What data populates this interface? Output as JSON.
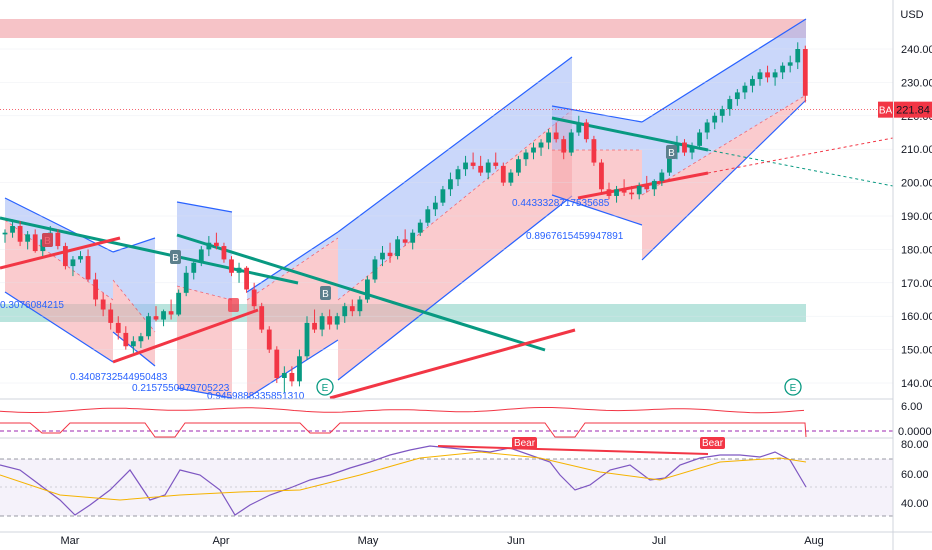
{
  "chart_data": {
    "type": "candlestick",
    "symbol": "BA",
    "currency": "USD",
    "last_price": "221.84",
    "x_tick_labels": [
      "Mar",
      "Apr",
      "May",
      "Jun",
      "Jul",
      "Aug"
    ],
    "y_tick_labels": [
      "140.00",
      "150.00",
      "160.00",
      "170.00",
      "180.00",
      "190.00",
      "200.00",
      "210.00",
      "220.00",
      "230.00",
      "240.00"
    ],
    "ylim": [
      136,
      252
    ],
    "pane2": {
      "tick_labels": [
        "6.00",
        "0.0000"
      ]
    },
    "pane3": {
      "tick_labels": [
        "80.00",
        "60.00",
        "40.00"
      ],
      "ylim": [
        22,
        84
      ]
    },
    "fib_labels": [
      "0.3076084215",
      "0.3408732544950483",
      "0.2157550979705223",
      "0.9459888335851310",
      "0.4433328717535685",
      "0.8967615459947891"
    ],
    "signal_labels": {
      "buy": "B",
      "bear": "Bear",
      "earnings": "E"
    },
    "candles": [
      [
        184.5,
        186,
        182,
        185
      ],
      [
        185,
        189,
        183.5,
        187
      ],
      [
        187,
        188.5,
        181,
        182.3
      ],
      [
        182.3,
        185.5,
        180,
        184.5
      ],
      [
        184.5,
        186,
        179,
        179.5
      ],
      [
        179.5,
        184,
        178,
        183
      ],
      [
        183,
        187,
        181.5,
        185
      ],
      [
        185,
        186,
        180,
        181
      ],
      [
        181,
        182,
        174,
        175
      ],
      [
        175,
        178,
        172,
        177
      ],
      [
        177,
        179.5,
        176,
        178
      ],
      [
        178,
        180,
        170.5,
        171
      ],
      [
        171,
        173,
        163,
        165
      ],
      [
        165,
        167,
        160,
        162
      ],
      [
        162,
        164,
        156,
        158
      ],
      [
        158,
        160,
        153,
        155
      ],
      [
        155,
        157,
        150,
        151
      ],
      [
        151,
        154,
        149,
        152.5
      ],
      [
        152.5,
        155,
        150.5,
        154
      ],
      [
        154,
        161,
        153,
        160
      ],
      [
        160,
        163,
        158.5,
        159
      ],
      [
        159,
        162,
        157,
        161.5
      ],
      [
        161.5,
        165,
        159,
        160.5
      ],
      [
        160.5,
        168,
        160,
        167
      ],
      [
        167,
        175,
        166,
        173
      ],
      [
        173,
        177,
        171,
        176
      ],
      [
        176,
        181,
        175,
        180
      ],
      [
        180,
        184,
        178,
        182
      ],
      [
        182,
        185,
        180,
        181
      ],
      [
        181,
        182,
        176,
        177
      ],
      [
        177,
        178,
        172,
        173
      ],
      [
        173,
        176,
        170,
        174.5
      ],
      [
        174.5,
        175,
        167,
        168
      ],
      [
        168,
        170,
        162,
        163
      ],
      [
        163,
        164,
        155,
        156
      ],
      [
        156,
        157,
        149,
        150
      ],
      [
        150,
        151,
        140,
        141.5
      ],
      [
        141.5,
        145,
        137,
        143
      ],
      [
        143,
        145,
        139,
        140.5
      ],
      [
        140.5,
        150,
        139,
        148
      ],
      [
        148,
        160,
        147,
        158
      ],
      [
        158,
        162,
        155,
        156
      ],
      [
        156,
        161,
        154,
        160
      ],
      [
        160,
        162,
        156,
        157.5
      ],
      [
        157.5,
        161,
        156,
        160
      ],
      [
        160,
        164,
        158,
        163
      ],
      [
        163,
        165,
        160,
        161.5
      ],
      [
        161.5,
        166,
        160,
        165
      ],
      [
        165,
        172,
        164,
        171
      ],
      [
        171,
        178,
        170,
        177
      ],
      [
        177,
        181,
        175,
        179
      ],
      [
        179,
        182,
        176,
        178
      ],
      [
        178,
        184,
        177,
        183
      ],
      [
        183,
        186,
        181,
        182
      ],
      [
        182,
        186,
        180,
        185
      ],
      [
        185,
        189,
        184,
        188
      ],
      [
        188,
        193,
        187,
        192
      ],
      [
        192,
        196,
        190,
        194
      ],
      [
        194,
        199,
        193,
        198
      ],
      [
        198,
        203,
        196,
        201
      ],
      [
        201,
        205,
        199,
        204
      ],
      [
        204,
        208,
        202,
        206
      ],
      [
        206,
        209,
        204,
        205
      ],
      [
        205,
        208,
        202,
        203
      ],
      [
        203,
        207,
        201,
        206
      ],
      [
        206,
        209,
        204,
        205
      ],
      [
        205,
        206,
        199,
        200
      ],
      [
        200,
        204,
        199,
        203
      ],
      [
        203,
        208,
        202,
        207
      ],
      [
        207,
        210,
        205,
        209
      ],
      [
        209,
        212,
        207,
        210.5
      ],
      [
        210.5,
        213,
        208,
        212
      ],
      [
        212,
        216,
        210,
        215
      ],
      [
        215,
        218,
        212,
        213
      ],
      [
        213,
        214,
        207,
        209
      ],
      [
        209,
        216,
        208,
        215
      ],
      [
        215,
        220,
        214,
        218
      ],
      [
        218,
        219,
        212,
        213
      ],
      [
        213,
        214,
        205,
        206
      ],
      [
        206,
        207,
        197,
        198
      ],
      [
        198,
        200,
        195,
        196
      ],
      [
        196,
        199,
        194,
        198
      ],
      [
        198,
        201,
        196,
        197
      ],
      [
        197,
        199,
        195,
        196.5
      ],
      [
        196.5,
        200,
        195,
        199
      ],
      [
        199,
        202,
        197,
        198
      ],
      [
        198,
        201,
        196,
        200.5
      ],
      [
        200.5,
        204,
        199,
        203
      ],
      [
        203,
        210,
        202,
        209
      ],
      [
        209,
        214,
        207,
        212
      ],
      [
        212,
        213,
        208,
        209
      ],
      [
        209,
        212,
        207,
        211
      ],
      [
        211,
        216,
        210,
        215
      ],
      [
        215,
        219,
        213,
        218
      ],
      [
        218,
        221,
        216,
        220
      ],
      [
        220,
        223,
        218,
        222
      ],
      [
        222,
        226,
        220,
        225
      ],
      [
        225,
        228,
        223,
        227
      ],
      [
        227,
        230,
        225,
        229
      ],
      [
        229,
        232,
        227,
        231
      ],
      [
        231,
        234,
        229,
        233
      ],
      [
        233,
        235,
        230,
        231.5
      ],
      [
        231.5,
        234,
        229,
        233
      ],
      [
        233,
        236,
        231,
        235
      ],
      [
        235,
        238,
        233,
        236
      ],
      [
        236,
        242,
        234,
        240
      ],
      [
        240,
        241,
        224,
        226
      ],
      [
        226,
        229,
        221,
        221.84
      ]
    ]
  }
}
